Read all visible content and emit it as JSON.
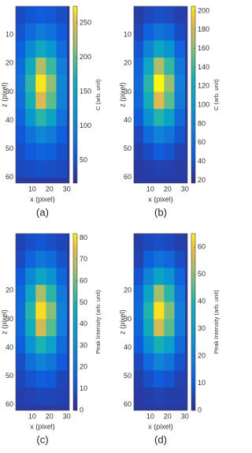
{
  "chart_data": [
    {
      "type": "heatmap",
      "caption": "(a)",
      "xlabel": "x (pixel)",
      "ylabel": "z (pixel)",
      "colormap": "parula",
      "x": [
        3,
        9,
        15,
        21,
        27
      ],
      "y": [
        3,
        9,
        15,
        21,
        27,
        33,
        39,
        45,
        51,
        57
      ],
      "values": [
        [
          43,
          51,
          57,
          53,
          45
        ],
        [
          49,
          72,
          91,
          80,
          55
        ],
        [
          61,
          110,
          154,
          129,
          73
        ],
        [
          74,
          155,
          227,
          185,
          95
        ],
        [
          81,
          180,
          268,
          217,
          107
        ],
        [
          77,
          166,
          245,
          199,
          100
        ],
        [
          65,
          126,
          179,
          148,
          81
        ],
        [
          52,
          82,
          108,
          93,
          60
        ],
        [
          45,
          55,
          65,
          60,
          47
        ],
        [
          41,
          44,
          47,
          45,
          42
        ]
      ],
      "xlim": [
        0.5,
        31.5
      ],
      "ylim": [
        0,
        62
      ],
      "xticks": [
        10,
        20,
        30
      ],
      "yticks": [
        10,
        20,
        30,
        40,
        50,
        60
      ],
      "colorbar": {
        "label": "C (arb. unit)",
        "lim": [
          17,
          274
        ],
        "ticks": [
          50,
          100,
          150,
          200,
          250
        ]
      }
    },
    {
      "type": "heatmap",
      "caption": "(b)",
      "xlabel": "x (pixel)",
      "ylabel": "z (pixel)",
      "colormap": "parula",
      "x": [
        3,
        9,
        15,
        21,
        27
      ],
      "y": [
        3,
        9,
        15,
        21,
        27,
        33,
        39,
        45,
        51,
        57
      ],
      "values": [
        [
          27,
          34,
          38,
          35,
          29
        ],
        [
          32,
          50,
          65,
          56,
          37
        ],
        [
          41,
          80,
          114,
          95,
          51
        ],
        [
          52,
          115,
          171,
          139,
          68
        ],
        [
          57,
          135,
          204,
          164,
          77
        ],
        [
          54,
          124,
          186,
          149,
          72
        ],
        [
          45,
          92,
          134,
          110,
          57
        ],
        [
          34,
          58,
          78,
          66,
          41
        ],
        [
          29,
          37,
          45,
          41,
          30
        ],
        [
          26,
          28,
          30,
          29,
          27
        ]
      ],
      "xlim": [
        0.5,
        31.5
      ],
      "ylim": [
        0,
        62
      ],
      "xticks": [
        10,
        20,
        30
      ],
      "yticks": [
        10,
        20,
        30,
        40,
        50,
        60
      ],
      "colorbar": {
        "label": "C (arb. unit)",
        "lim": [
          17,
          205
        ],
        "ticks": [
          20,
          40,
          60,
          80,
          100,
          120,
          140,
          160,
          180,
          200
        ]
      }
    },
    {
      "type": "heatmap",
      "caption": "(c)",
      "xlabel": "x (pixel)",
      "ylabel": "z (pixel)",
      "colormap": "parula",
      "x": [
        3,
        9,
        15,
        21,
        27
      ],
      "y": [
        3,
        9,
        15,
        21,
        27,
        33,
        39,
        45,
        51,
        57
      ],
      "values": [
        [
          6,
          9,
          11,
          9,
          7
        ],
        [
          8,
          15,
          22,
          18,
          10
        ],
        [
          12,
          28,
          42,
          34,
          16
        ],
        [
          16,
          42,
          66,
          52,
          23
        ],
        [
          18,
          51,
          79,
          63,
          27
        ],
        [
          17,
          46,
          72,
          57,
          25
        ],
        [
          13,
          33,
          50,
          40,
          18
        ],
        [
          9,
          19,
          27,
          22,
          12
        ],
        [
          7,
          10,
          13,
          12,
          7
        ],
        [
          5,
          6,
          7,
          7,
          6
        ]
      ],
      "xlim": [
        0.5,
        31.5
      ],
      "ylim": [
        0,
        62
      ],
      "xticks": [
        10,
        20,
        30
      ],
      "yticks": [
        20,
        30,
        40,
        50,
        60
      ],
      "colorbar": {
        "label": "Peak Intensity (arb. unit)",
        "lim": [
          0,
          82
        ],
        "ticks": [
          0,
          10,
          20,
          30,
          40,
          50,
          60,
          70,
          80
        ]
      }
    },
    {
      "type": "heatmap",
      "caption": "(d)",
      "xlabel": "x (pixel)",
      "ylabel": "z (pixel)",
      "colormap": "parula",
      "x": [
        3,
        9,
        15,
        21,
        27
      ],
      "y": [
        3,
        9,
        15,
        21,
        27,
        33,
        39,
        45,
        51,
        57
      ],
      "values": [
        [
          4,
          6,
          7,
          6,
          4
        ],
        [
          5,
          11,
          16,
          13,
          7
        ],
        [
          8,
          21,
          33,
          26,
          12
        ],
        [
          12,
          33,
          52,
          41,
          17
        ],
        [
          14,
          40,
          63,
          49,
          20
        ],
        [
          13,
          36,
          57,
          45,
          19
        ],
        [
          10,
          25,
          39,
          31,
          14
        ],
        [
          6,
          14,
          21,
          17,
          8
        ],
        [
          4,
          7,
          10,
          8,
          5
        ],
        [
          3,
          4,
          5,
          4,
          4
        ]
      ],
      "xlim": [
        0.5,
        31.5
      ],
      "ylim": [
        0,
        62
      ],
      "xticks": [
        10,
        20,
        30
      ],
      "yticks": [
        20,
        30,
        40,
        50,
        60
      ],
      "colorbar": {
        "label": "Peak Intensity (arb. unit)",
        "lim": [
          0,
          65
        ],
        "ticks": [
          0,
          10,
          20,
          30,
          40,
          50,
          60
        ]
      }
    }
  ]
}
